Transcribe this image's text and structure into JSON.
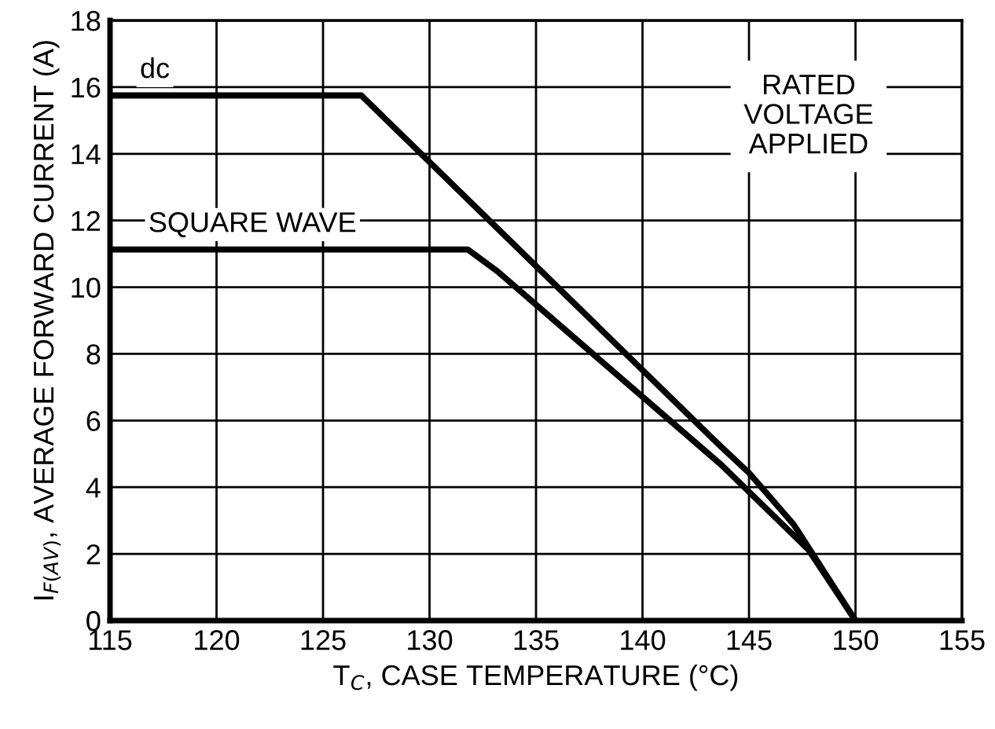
{
  "chart_data": {
    "type": "line",
    "xlabel": "T$_{C}$, CASE TEMPERATURE (°C)",
    "ylabel": "I$_{F(AV)}$, AVERAGE FORWARD CURRENT (A)",
    "annotations": [
      "RATED\nVOLTAGE\nAPPLIED"
    ],
    "xlim": [
      115,
      155
    ],
    "xticks": [
      115,
      120,
      125,
      130,
      135,
      140,
      145,
      150,
      155
    ],
    "ylim": [
      0,
      18
    ],
    "yticks": [
      0,
      2,
      4,
      6,
      8,
      10,
      12,
      14,
      16,
      18
    ],
    "grid": true,
    "legend": false,
    "marker": "none",
    "line_style": "solid",
    "series": [
      {
        "name": "dc",
        "color": "#000000",
        "x": [
          115,
          126.8,
          143.5,
          145.0,
          147.1,
          150
        ],
        "values": [
          15.75,
          15.75,
          5.33,
          4.43,
          2.88,
          0
        ]
      },
      {
        "name": "SQUARE WAVE",
        "color": "#000000",
        "x": [
          115,
          131.8,
          133.2,
          143.7,
          147.8,
          150
        ],
        "values": [
          11.13,
          11.13,
          10.47,
          4.67,
          2.12,
          0
        ]
      }
    ]
  }
}
